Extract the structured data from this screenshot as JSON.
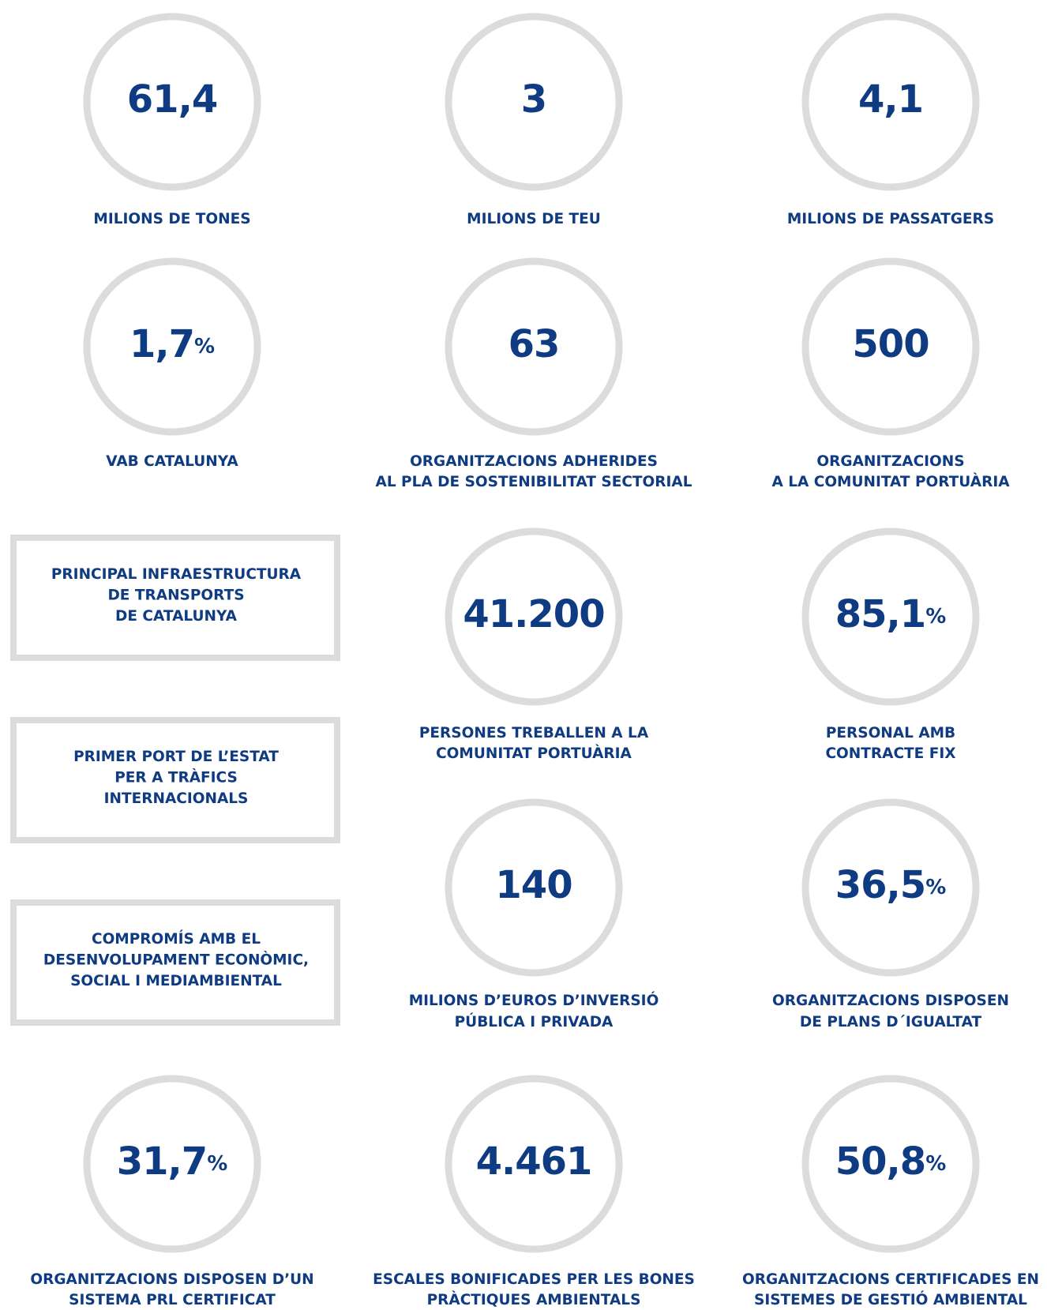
{
  "stats": [
    {
      "value": "61,4",
      "label": [
        "MILIONS DE TONES"
      ]
    },
    {
      "value": "3",
      "label": [
        "MILIONS DE TEU"
      ]
    },
    {
      "value": "4,1",
      "label": [
        "MILIONS DE PASSATGERS"
      ]
    },
    {
      "value": "1,7",
      "unit": "%",
      "label": [
        "VAB CATALUNYA"
      ]
    },
    {
      "value": "63",
      "label": [
        "ORGANITZACIONS ADHERIDES",
        "AL PLA DE SOSTENIBILITAT SECTORIAL"
      ]
    },
    {
      "value": "500",
      "label": [
        "ORGANITZACIONS",
        "A LA COMUNITAT PORTUÀRIA"
      ]
    },
    {
      "value": "41.200",
      "label": [
        "PERSONES TREBALLEN A LA",
        "COMUNITAT PORTUÀRIA"
      ]
    },
    {
      "value": "85,1",
      "unit": "%",
      "label": [
        "PERSONAL AMB",
        "CONTRACTE FIX"
      ]
    },
    {
      "value": "140",
      "label": [
        "MILIONS D’EUROS D’INVERSIÓ",
        "PÚBLICA I PRIVADA"
      ]
    },
    {
      "value": "36,5",
      "unit": "%",
      "label": [
        "ORGANITZACIONS DISPOSEN",
        "DE PLANS D´IGUALTAT"
      ]
    },
    {
      "value": "31,7",
      "unit": "%",
      "label": [
        "ORGANITZACIONS DISPOSEN D’UN",
        "SISTEMA PRL CERTIFICAT"
      ]
    },
    {
      "value": "4.461",
      "label": [
        "ESCALES BONIFICADES PER LES BONES",
        "PRÀCTIQUES AMBIENTALS"
      ]
    },
    {
      "value": "50,8",
      "unit": "%",
      "label": [
        "ORGANITZACIONS CERTIFICADES EN",
        "SISTEMES DE GESTIÓ AMBIENTAL"
      ]
    }
  ],
  "boxes": [
    {
      "lines": [
        "PRINCIPAL INFRAESTRUCTURA",
        "DE TRANSPORTS",
        "DE CATALUNYA"
      ]
    },
    {
      "lines": [
        "PRIMER PORT DE L’ESTAT",
        "PER A TRÀFICS",
        "INTERNACIONALS"
      ]
    },
    {
      "lines": [
        "COMPROMÍS AMB EL",
        "DESENVOLUPAMENT ECONÒMIC,",
        "SOCIAL I MEDIAMBIENTAL"
      ]
    }
  ]
}
